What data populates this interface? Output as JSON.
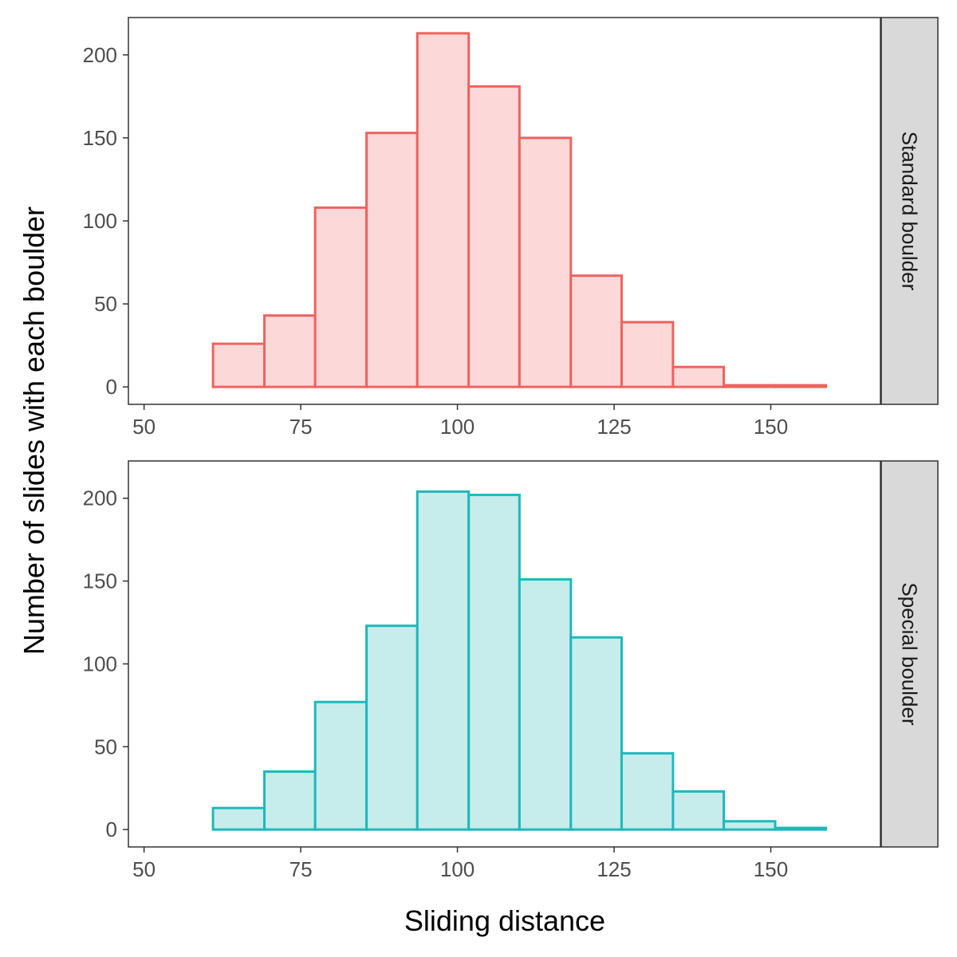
{
  "chart_data": {
    "type": "bar",
    "subtype": "histogram",
    "facet_layout": "rows",
    "xlabel": "Sliding distance",
    "ylabel": "Number of slides with each boulder",
    "xlim": [
      47.5,
      167.5
    ],
    "ylim": [
      -10.5,
      222.5
    ],
    "x_ticks": [
      50,
      75,
      100,
      125,
      150
    ],
    "y_ticks": [
      0,
      50,
      100,
      150,
      200
    ],
    "grid": false,
    "legend": "none",
    "bin_edges": [
      61,
      69.2,
      77.3,
      85.5,
      93.6,
      101.8,
      109.9,
      118.1,
      126.2,
      134.4,
      142.5,
      150.7,
      158.8
    ],
    "panels": [
      {
        "label": "Standard boulder",
        "stroke": "#f0625f",
        "fill": "#fcd9d8",
        "values": [
          26,
          43,
          108,
          153,
          213,
          181,
          150,
          67,
          39,
          12,
          1,
          1
        ]
      },
      {
        "label": "Special boulder",
        "stroke": "#1fb8bb",
        "fill": "#c6ecec",
        "values": [
          13,
          35,
          77,
          123,
          204,
          202,
          151,
          116,
          46,
          23,
          5,
          1
        ]
      }
    ]
  }
}
